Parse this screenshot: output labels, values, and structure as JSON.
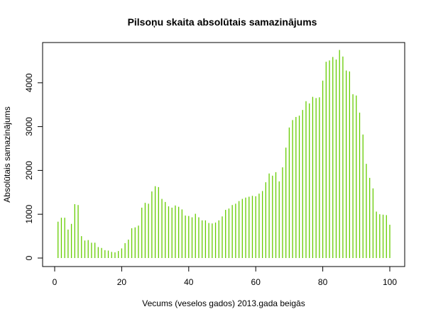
{
  "chart_data": {
    "type": "bar",
    "title": "Pilsoņu skaita absolūtais samazinājums",
    "xlabel": "Vecums (veselos gados) 2013.gada beigās",
    "ylabel": "Absolūtais samazinājums",
    "xlim": [
      0,
      100
    ],
    "ylim": [
      -200,
      4800
    ],
    "x_ticks": [
      0,
      20,
      40,
      60,
      80,
      100
    ],
    "y_ticks": [
      0,
      1000,
      2000,
      3000,
      4000
    ],
    "bar_color": "#66cc00",
    "grid": false,
    "x": [
      0,
      1,
      2,
      3,
      4,
      5,
      6,
      7,
      8,
      9,
      10,
      11,
      12,
      13,
      14,
      15,
      16,
      17,
      18,
      19,
      20,
      21,
      22,
      23,
      24,
      25,
      26,
      27,
      28,
      29,
      30,
      31,
      32,
      33,
      34,
      35,
      36,
      37,
      38,
      39,
      40,
      41,
      42,
      43,
      44,
      45,
      46,
      47,
      48,
      49,
      50,
      51,
      52,
      53,
      54,
      55,
      56,
      57,
      58,
      59,
      60,
      61,
      62,
      63,
      64,
      65,
      66,
      67,
      68,
      69,
      70,
      71,
      72,
      73,
      74,
      75,
      76,
      77,
      78,
      79,
      80,
      81,
      82,
      83,
      84,
      85,
      86,
      87,
      88,
      89,
      90,
      91,
      92,
      93,
      94,
      95,
      96,
      97,
      98,
      99,
      100
    ],
    "values": [
      0,
      830,
      920,
      920,
      650,
      780,
      1230,
      1210,
      500,
      400,
      410,
      350,
      350,
      250,
      230,
      180,
      170,
      140,
      130,
      160,
      220,
      340,
      420,
      680,
      700,
      740,
      1150,
      1260,
      1240,
      1520,
      1640,
      1620,
      1350,
      1280,
      1180,
      1150,
      1200,
      1170,
      1110,
      970,
      960,
      930,
      1010,
      930,
      860,
      860,
      800,
      790,
      810,
      860,
      950,
      1100,
      1130,
      1210,
      1240,
      1300,
      1350,
      1380,
      1400,
      1420,
      1410,
      1470,
      1530,
      1730,
      1930,
      1880,
      1960,
      1750,
      2070,
      2520,
      2980,
      3150,
      3220,
      3250,
      3380,
      3580,
      3530,
      3680,
      3650,
      3670,
      4050,
      4480,
      4510,
      4590,
      4530,
      4750,
      4600,
      4280,
      4260,
      3740,
      3710,
      3320,
      2820,
      2150,
      1830,
      1590,
      1060,
      1000,
      990,
      980,
      760
    ]
  }
}
